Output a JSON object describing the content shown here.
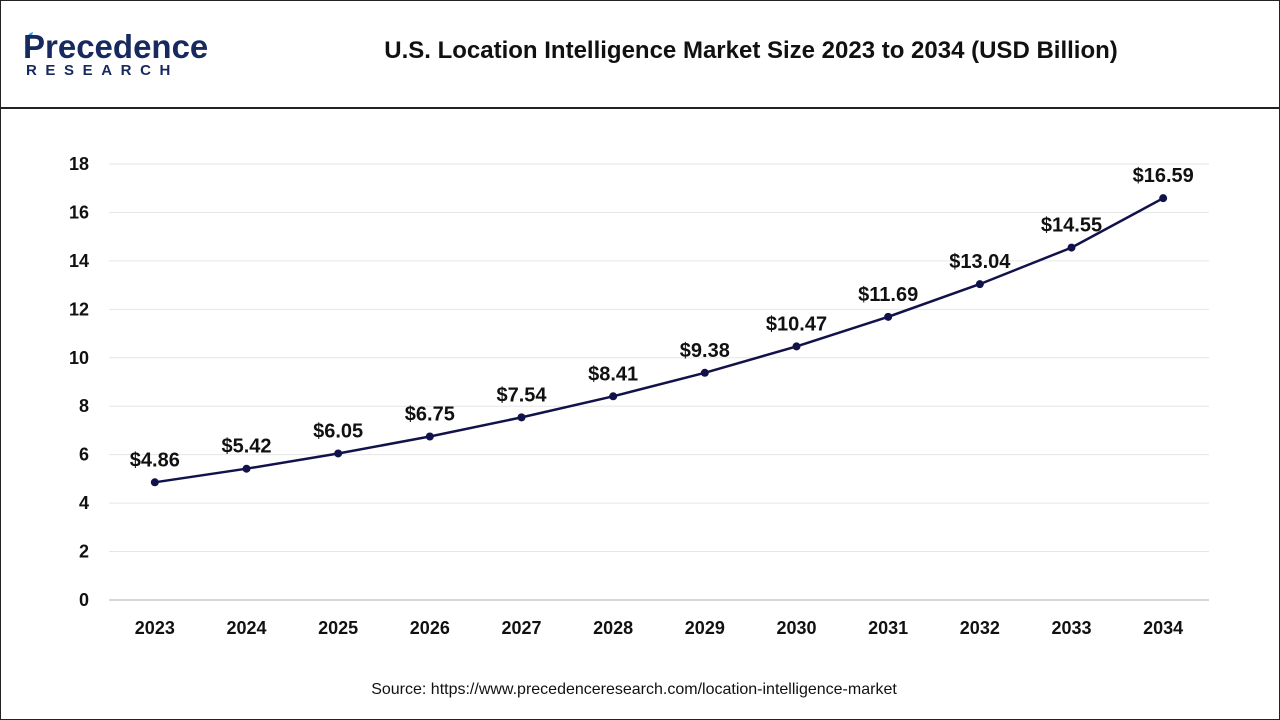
{
  "header": {
    "logo_main": "Precedence",
    "logo_sub": "RESEARCH",
    "title": "U.S. Location Intelligence Market Size 2023 to 2034 (USD Billion)"
  },
  "source": "Source: https://www.precedenceresearch.com/location-intelligence-market",
  "colors": {
    "line": "#12124a",
    "grid": "#e6e6e6",
    "logo": "#17295f",
    "axis": "#c8c8c8"
  },
  "chart_data": {
    "type": "line",
    "title": "U.S. Location Intelligence Market Size 2023 to 2034 (USD Billion)",
    "categories": [
      "2023",
      "2024",
      "2025",
      "2026",
      "2027",
      "2028",
      "2029",
      "2030",
      "2031",
      "2032",
      "2033",
      "2034"
    ],
    "values": [
      4.86,
      5.42,
      6.05,
      6.75,
      7.54,
      8.41,
      9.38,
      10.47,
      11.69,
      13.04,
      14.55,
      16.59
    ],
    "data_labels": [
      "$4.86",
      "$5.42",
      "$6.05",
      "$6.75",
      "$7.54",
      "$8.41",
      "$9.38",
      "$10.47",
      "$11.69",
      "$13.04",
      "$14.55",
      "$16.59"
    ],
    "ylim": [
      0,
      18
    ],
    "yticks": [
      0,
      2,
      4,
      6,
      8,
      10,
      12,
      14,
      16,
      18
    ],
    "xlabel": "",
    "ylabel": "",
    "grid": true,
    "legend": "none"
  }
}
